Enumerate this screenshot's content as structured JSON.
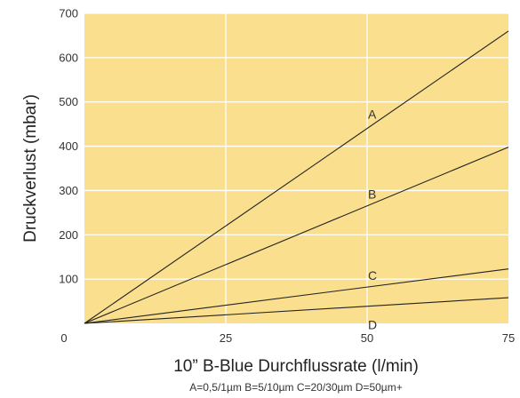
{
  "chart_data": {
    "type": "line",
    "xlabel": "10” B-Blue Durchflussrate (l/min)",
    "ylabel": "Druckverlust (mbar)",
    "caption": "A=0,5/1µm B=5/10µm C=20/30µm D=50µm+",
    "xlim": [
      0,
      75
    ],
    "ylim": [
      0,
      700
    ],
    "x_ticks": [
      "0",
      "25",
      "50",
      "75"
    ],
    "y_ticks": [
      "100",
      "200",
      "300",
      "400",
      "500",
      "600",
      "700"
    ],
    "grid": true,
    "background_color": "#f9df8e",
    "grid_color": "#ffffff",
    "line_color": "#222222",
    "series": [
      {
        "name": "A",
        "x": [
          0,
          75
        ],
        "y": [
          0,
          660
        ]
      },
      {
        "name": "B",
        "x": [
          0,
          75
        ],
        "y": [
          0,
          398
        ]
      },
      {
        "name": "C",
        "x": [
          0,
          75
        ],
        "y": [
          0,
          123
        ]
      },
      {
        "name": "D",
        "x": [
          0,
          75
        ],
        "y": [
          0,
          58
        ]
      }
    ]
  }
}
